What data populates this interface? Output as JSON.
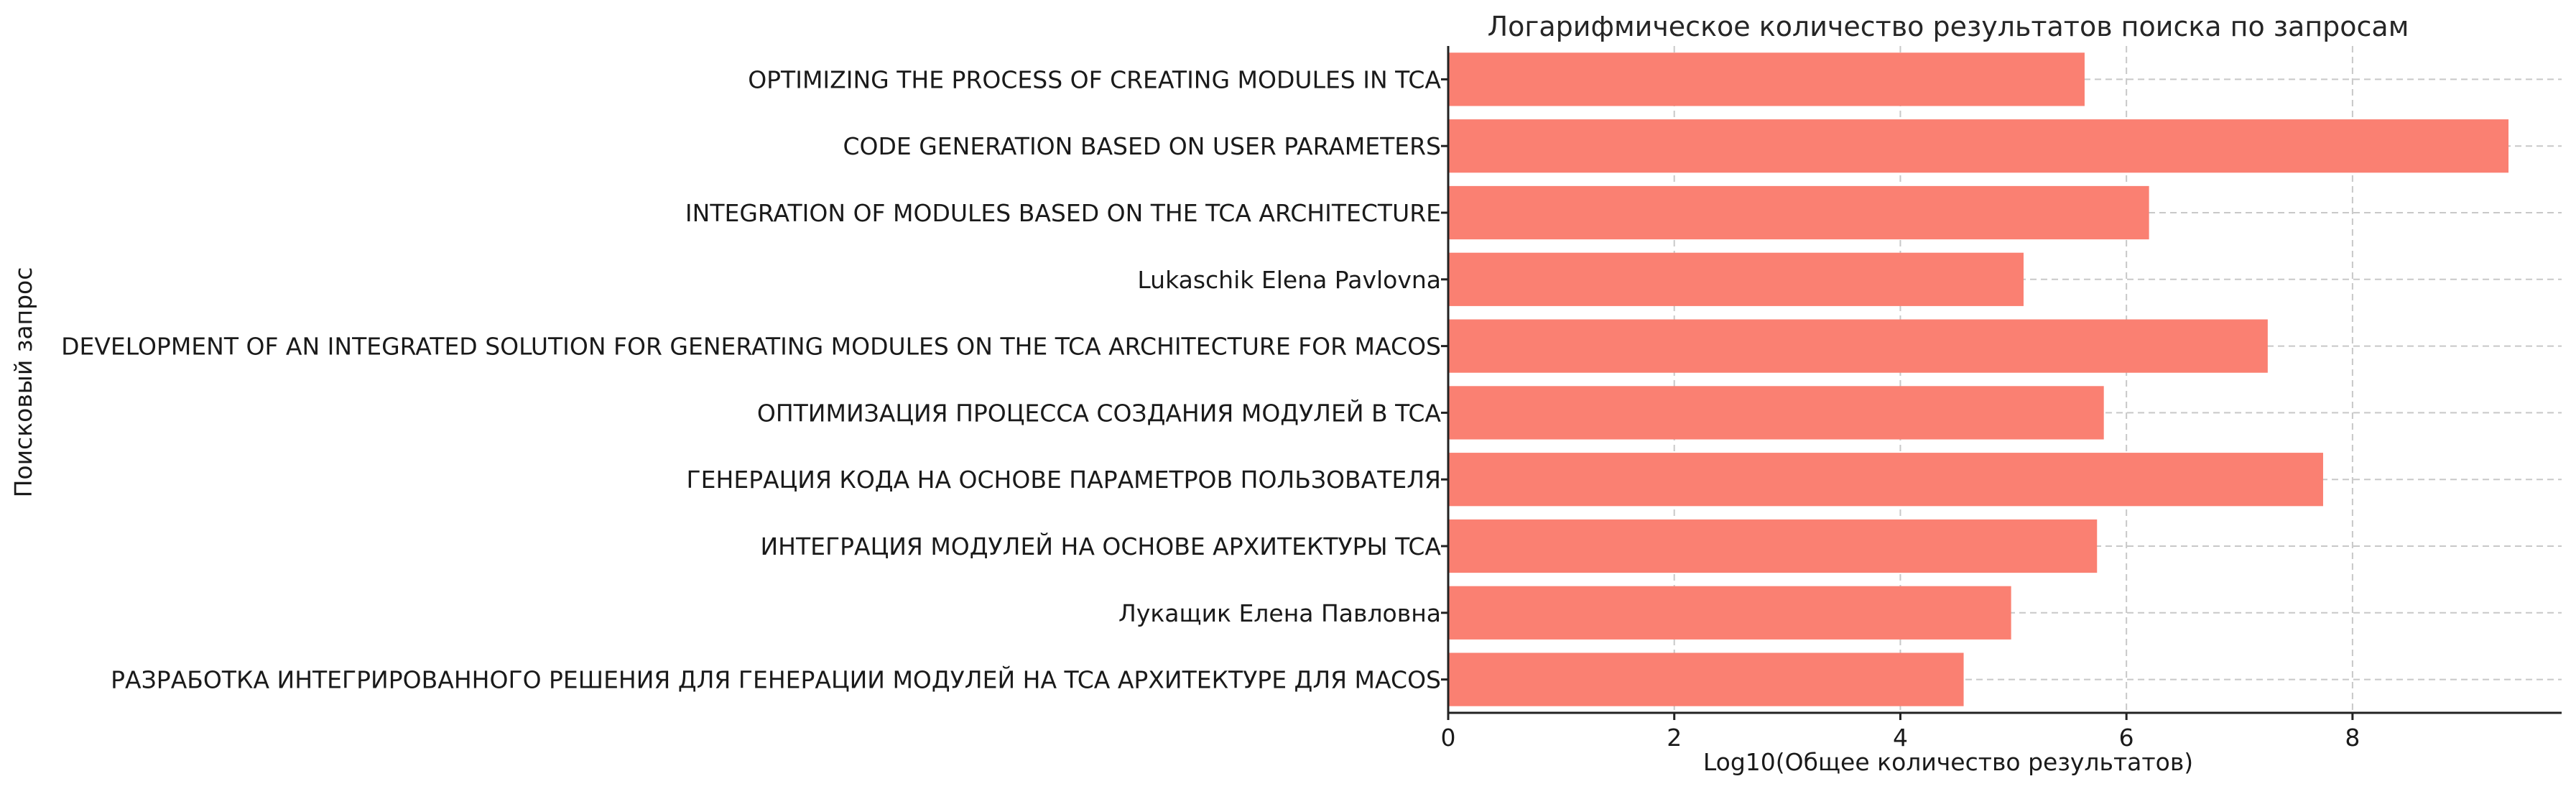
{
  "chart_data": {
    "type": "bar",
    "orientation": "horizontal",
    "title": "Логарифмическое количество результатов поиска по запросам",
    "xlabel": "Log10(Общее количество результатов)",
    "ylabel": "Поисковый запрос",
    "xlim": [
      0,
      9.85
    ],
    "xticks": [
      0,
      2,
      4,
      6,
      8
    ],
    "grid": true,
    "bar_color": "#fa8072",
    "categories": [
      "OPTIMIZING THE PROCESS OF CREATING MODULES IN TCA",
      "CODE GENERATION BASED ON USER PARAMETERS",
      "INTEGRATION OF MODULES BASED ON THE TCA ARCHITECTURE",
      "Lukaschik Elena Pavlovna",
      "DEVELOPMENT OF AN INTEGRATED SOLUTION FOR GENERATING MODULES ON THE TCA ARCHITECTURE FOR MACOS",
      "ОПТИМИЗАЦИЯ ПРОЦЕССА СОЗДАНИЯ МОДУЛЕЙ В TCA",
      "ГЕНЕРАЦИЯ КОДА НА ОСНОВЕ ПАРАМЕТРОВ ПОЛЬЗОВАТЕЛЯ",
      "ИНТЕГРАЦИЯ МОДУЛЕЙ НА ОСНОВЕ АРХИТЕКТУРЫ TCA",
      "Лукащик Елена Павловна",
      "РАЗРАБОТКА ИНТЕГРИРОВАННОГО РЕШЕНИЯ ДЛЯ ГЕНЕРАЦИИ МОДУЛЕЙ НА TCA АРХИТЕКТУРЕ ДЛЯ MACOS"
    ],
    "values": [
      5.63,
      9.38,
      6.2,
      5.09,
      7.25,
      5.8,
      7.74,
      5.74,
      4.98,
      4.56
    ]
  }
}
